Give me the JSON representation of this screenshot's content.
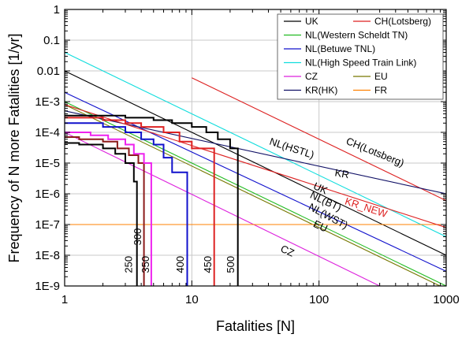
{
  "chart_data": {
    "type": "line",
    "xlabel": "Fatalities [N]",
    "ylabel": "Frequency of N more Fatalities [1/yr]",
    "xscale": "log",
    "yscale": "log",
    "xlim": [
      1,
      1000
    ],
    "ylim": [
      1e-09,
      1
    ],
    "grid": true,
    "legend_position": "top-right",
    "x_tick_labels": [
      "1",
      "10",
      "100",
      "1000"
    ],
    "y_tick_labels": [
      "1",
      "0.1",
      "0.01",
      "1E-3",
      "1E-4",
      "1E-5",
      "1E-6",
      "1E-7",
      "1E-8",
      "1E-9"
    ],
    "legend_columns": [
      [
        {
          "name": "UK",
          "color": "#000000"
        },
        {
          "name": "NL(Western Scheldt TN)",
          "color": "#22bb22"
        },
        {
          "name": "NL(Betuwe TNL)",
          "color": "#1111cc"
        },
        {
          "name": "NL(High Speed Train Link)",
          "color": "#11dddd"
        },
        {
          "name": "CZ",
          "color": "#dd22dd"
        },
        {
          "name": "KR(HK)",
          "color": "#111166"
        }
      ],
      [
        {
          "name": "CH(Lotsberg)",
          "color": "#dd2222"
        },
        {
          "name": "",
          "color": ""
        },
        {
          "name": "",
          "color": ""
        },
        {
          "name": "",
          "color": ""
        },
        {
          "name": "EU",
          "color": "#777700"
        },
        {
          "name": "FR",
          "color": "#ff8000"
        }
      ]
    ],
    "series": [
      {
        "key": "uk",
        "color": "#000000",
        "x": [
          1,
          1000
        ],
        "y": [
          0.01,
          1e-08
        ]
      },
      {
        "key": "ch",
        "color": "#dd2222",
        "x": [
          10,
          1000
        ],
        "y": [
          0.006,
          6e-07
        ]
      },
      {
        "key": "nlwst",
        "color": "#22bb22",
        "x": [
          1,
          1000
        ],
        "y": [
          0.001,
          1e-09
        ]
      },
      {
        "key": "nlbt",
        "color": "#1111cc",
        "x": [
          1,
          1000
        ],
        "y": [
          0.002,
          3e-09
        ]
      },
      {
        "key": "nlhst",
        "color": "#11dddd",
        "x": [
          1,
          1000
        ],
        "y": [
          0.04,
          4e-08
        ]
      },
      {
        "key": "cz",
        "color": "#dd22dd",
        "x": [
          1,
          300
        ],
        "y": [
          0.0001,
          1e-09
        ]
      },
      {
        "key": "eu",
        "color": "#777700",
        "x": [
          1,
          1000
        ],
        "y": [
          0.0008,
          8e-10
        ]
      },
      {
        "key": "kr",
        "color": "#111166",
        "x": [
          1,
          1000
        ],
        "y": [
          0.0005,
          1e-06
        ]
      },
      {
        "key": "fr",
        "color": "#ff8000",
        "x": [
          1,
          1000
        ],
        "y": [
          1e-07,
          1e-07
        ]
      },
      {
        "key": "krnew",
        "color": "#dd2222",
        "x": [
          1,
          1000
        ],
        "y": [
          0.0008,
          8e-08
        ]
      }
    ],
    "step_curves": [
      {
        "label": "250",
        "color": "#000000",
        "x": [
          1,
          1.3,
          1.3,
          2.0,
          2.0,
          2.5,
          2.5,
          3.0,
          3.0,
          3.5,
          3.5,
          3.7,
          3.7
        ],
        "y": [
          4.5e-05,
          4.5e-05,
          4e-05,
          4e-05,
          3e-05,
          3e-05,
          2e-05,
          2e-05,
          1e-05,
          1e-05,
          2.5e-06,
          2.5e-06,
          1e-09
        ]
      },
      {
        "label": "300",
        "color": "#8b1a1a",
        "x": [
          1,
          1.3,
          1.3,
          2.0,
          2.0,
          2.6,
          2.6,
          3.2,
          3.2,
          3.8,
          3.8,
          4.2,
          4.2
        ],
        "y": [
          7e-05,
          7e-05,
          6e-05,
          6e-05,
          5e-05,
          5e-05,
          3e-05,
          3e-05,
          1.8e-05,
          1.8e-05,
          1e-05,
          1e-05,
          1e-09
        ]
      },
      {
        "label": "350",
        "color": "#ee22ee",
        "x": [
          1,
          1.6,
          1.6,
          2.2,
          2.2,
          3.0,
          3.0,
          3.5,
          3.5,
          4.2,
          4.2,
          4.8,
          4.8
        ],
        "y": [
          0.0001,
          0.0001,
          8e-05,
          8e-05,
          6e-05,
          6e-05,
          4e-05,
          4e-05,
          2e-05,
          2e-05,
          1e-05,
          1e-05,
          1e-09
        ]
      },
      {
        "label": "400",
        "color": "#1111cc",
        "x": [
          1,
          2.0,
          2.0,
          3.0,
          3.0,
          4.0,
          4.0,
          5.0,
          5.0,
          6.0,
          6.0,
          7.0,
          7.0,
          9.2,
          9.2
        ],
        "y": [
          0.0002,
          0.0002,
          0.00015,
          0.00015,
          0.0001,
          0.0001,
          6e-05,
          6e-05,
          4e-05,
          4e-05,
          1.5e-05,
          1.5e-05,
          5e-06,
          5e-06,
          1e-09
        ]
      },
      {
        "label": "450",
        "color": "#dd2222",
        "x": [
          1,
          2.0,
          2.0,
          3.0,
          3.0,
          4.0,
          4.0,
          6.0,
          6.0,
          8.0,
          8.0,
          10.0,
          10.0,
          15.0,
          15.0
        ],
        "y": [
          0.0003,
          0.0003,
          0.00025,
          0.00025,
          0.0002,
          0.0002,
          0.00015,
          0.00015,
          0.0001,
          0.0001,
          5e-05,
          5e-05,
          3e-05,
          3e-05,
          1e-09
        ]
      },
      {
        "label": "500",
        "color": "#000000",
        "x": [
          1,
          3.0,
          3.0,
          5.0,
          5.0,
          7.0,
          7.0,
          10.0,
          10.0,
          13.0,
          13.0,
          16.0,
          16.0,
          20.0,
          20.0,
          23.0,
          23.0
        ],
        "y": [
          0.00035,
          0.00035,
          0.0003,
          0.0003,
          0.00025,
          0.00025,
          0.0002,
          0.0002,
          0.00015,
          0.00015,
          0.0001,
          0.0001,
          6e-05,
          6e-05,
          3e-05,
          3e-05,
          1e-09
        ]
      }
    ],
    "annotations": [
      {
        "text": "NL(HSTL)",
        "color": "#000000",
        "x": 60,
        "y": 2.4e-05,
        "angle": 18
      },
      {
        "text": "CH(Lotsberg)",
        "color": "#000000",
        "x": 270,
        "y": 1.8e-05,
        "angle": 22
      },
      {
        "text": "KR",
        "color": "#000000",
        "x": 150,
        "y": 3.5e-06,
        "angle": 10
      },
      {
        "text": "UK",
        "color": "#000000",
        "x": 100,
        "y": 1.2e-06,
        "angle": 25
      },
      {
        "text": "NL(BT)",
        "color": "#000000",
        "x": 110,
        "y": 4.5e-07,
        "angle": 25
      },
      {
        "text": "NL(WST)",
        "color": "#000000",
        "x": 115,
        "y": 1.5e-07,
        "angle": 28
      },
      {
        "text": "EU",
        "color": "#000000",
        "x": 100,
        "y": 7e-08,
        "angle": 25
      },
      {
        "text": "KR_NEW",
        "color": "#dd2222",
        "x": 230,
        "y": 2.8e-07,
        "angle": 18
      },
      {
        "text": "CZ",
        "color": "#000000",
        "x": 55,
        "y": 1.1e-08,
        "angle": 25
      },
      {
        "text": "250",
        "color": "#000000",
        "x": 3.4,
        "y": 5e-09,
        "angle": -90
      },
      {
        "text": "300",
        "color": "#000000",
        "x": 4.0,
        "y": 4e-08,
        "angle": -90
      },
      {
        "text": "350",
        "color": "#000000",
        "x": 4.6,
        "y": 5e-09,
        "angle": -90
      },
      {
        "text": "400",
        "color": "#000000",
        "x": 8.6,
        "y": 5e-09,
        "angle": -90
      },
      {
        "text": "450",
        "color": "#000000",
        "x": 14.2,
        "y": 5e-09,
        "angle": -90
      },
      {
        "text": "500",
        "color": "#000000",
        "x": 21.5,
        "y": 5e-09,
        "angle": -90
      }
    ]
  }
}
